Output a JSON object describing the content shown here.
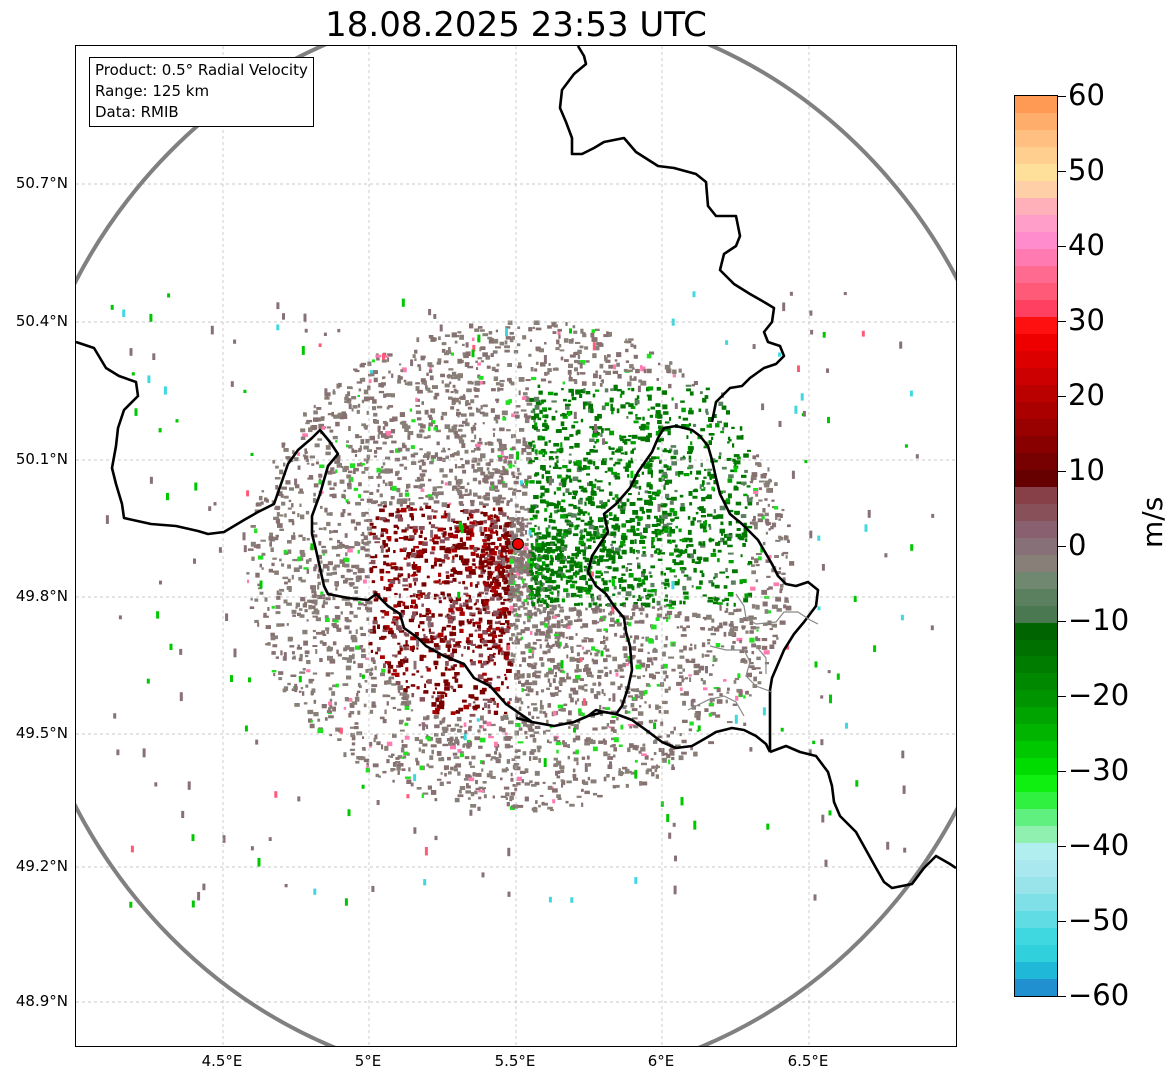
{
  "title": "18.08.2025 23:53 UTC",
  "info": {
    "product": "Product: 0.5° Radial Velocity",
    "range": "Range: 125 km",
    "data": "Data: RMIB"
  },
  "map": {
    "lon_range": [
      4.0,
      7.0
    ],
    "lat_range": [
      48.8,
      50.98
    ],
    "lat_ticks": [
      "50.7°N",
      "50.4°N",
      "50.1°N",
      "49.8°N",
      "49.5°N",
      "49.2°N",
      "48.9°N"
    ],
    "lon_ticks": [
      "4.5°E",
      "5°E",
      "5.5°E",
      "6°E",
      "6.5°E"
    ],
    "radar_site": {
      "lon": 5.505,
      "lat": 49.915
    }
  },
  "colorbar": {
    "unit": "m/s",
    "range": [
      -60,
      60
    ],
    "tick_labels": [
      "60",
      "50",
      "40",
      "30",
      "20",
      "10",
      "0",
      "−10",
      "−20",
      "−30",
      "−40",
      "−50",
      "−60"
    ],
    "colors_top_to_bottom": [
      "#ff9a55",
      "#ffad6a",
      "#ffbf80",
      "#ffcf8f",
      "#ffe09a",
      "#ffd0a8",
      "#ffb0b8",
      "#ff9ec8",
      "#ff8ccc",
      "#ff7ab0",
      "#ff6a90",
      "#ff5a78",
      "#ff4060",
      "#ff1010",
      "#ee0000",
      "#dd0000",
      "#cc0000",
      "#bb0000",
      "#aa0000",
      "#990000",
      "#880000",
      "#770000",
      "#660000",
      "#884048",
      "#885058",
      "#886070",
      "#887078",
      "#888078",
      "#708870",
      "#5a8060",
      "#4a7850",
      "#006400",
      "#007000",
      "#007c00",
      "#008800",
      "#009400",
      "#00a400",
      "#00b400",
      "#00c800",
      "#00dc00",
      "#10f010",
      "#30f040",
      "#60f080",
      "#90f0b0",
      "#b0eef0",
      "#a8e8ee",
      "#98e4ea",
      "#80e0e8",
      "#60dce4",
      "#40d8e0",
      "#30d0dc",
      "#20b8d8",
      "#2090d0"
    ]
  }
}
